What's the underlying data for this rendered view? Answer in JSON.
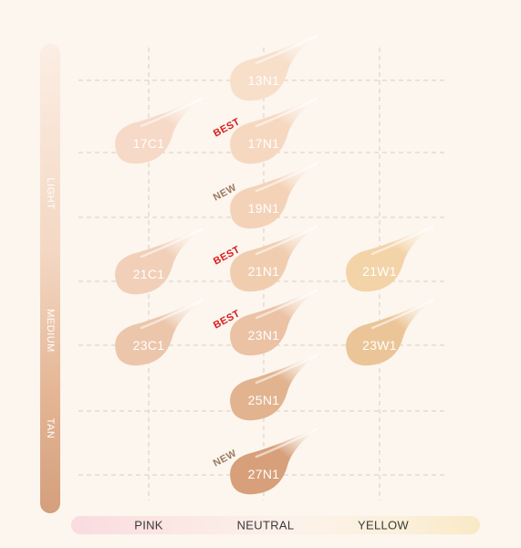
{
  "depth_axis": {
    "labels": [
      "LIGHT",
      "MEDIUM",
      "TAN"
    ]
  },
  "undertone_axis": {
    "labels": [
      "PINK",
      "NEUTRAL",
      "YELLOW"
    ]
  },
  "swatches": [
    {
      "code": "13N1",
      "undertone": "NEUTRAL",
      "badge": "",
      "color": "#f7dfca"
    },
    {
      "code": "17C1",
      "undertone": "PINK",
      "badge": "",
      "color": "#f6d9c6"
    },
    {
      "code": "17N1",
      "undertone": "NEUTRAL",
      "badge": "BEST",
      "color": "#f6d8c0"
    },
    {
      "code": "19N1",
      "undertone": "NEUTRAL",
      "badge": "NEW",
      "color": "#f4d2b8"
    },
    {
      "code": "21C1",
      "undertone": "PINK",
      "badge": "",
      "color": "#f1cfb8"
    },
    {
      "code": "21N1",
      "undertone": "NEUTRAL",
      "badge": "BEST",
      "color": "#f1cdb0"
    },
    {
      "code": "21W1",
      "undertone": "YELLOW",
      "badge": "",
      "color": "#f3d3a8"
    },
    {
      "code": "23C1",
      "undertone": "PINK",
      "badge": "",
      "color": "#ecc6ab"
    },
    {
      "code": "23N1",
      "undertone": "NEUTRAL",
      "badge": "BEST",
      "color": "#ebc2a4"
    },
    {
      "code": "23W1",
      "undertone": "YELLOW",
      "badge": "",
      "color": "#ebc597"
    },
    {
      "code": "25N1",
      "undertone": "NEUTRAL",
      "badge": "",
      "color": "#e2b38f"
    },
    {
      "code": "27N1",
      "undertone": "NEUTRAL",
      "badge": "NEW",
      "color": "#d7a07a"
    }
  ]
}
